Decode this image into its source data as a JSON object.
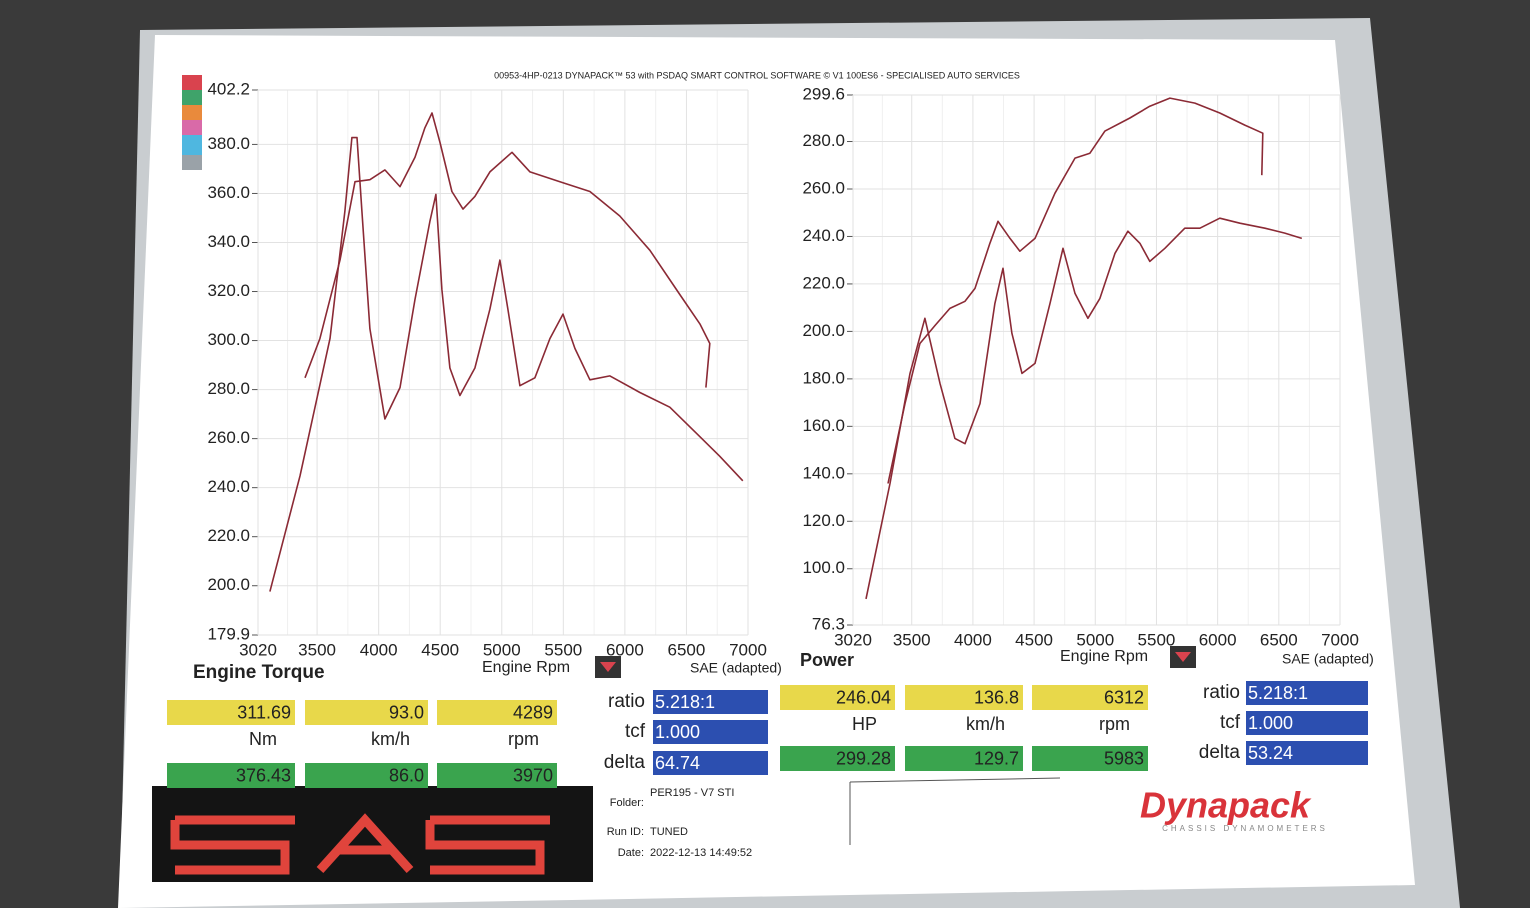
{
  "header": "00953-4HP-0213 DYNAPACK™ 53 with PSDAQ SMART CONTROL SOFTWARE © V1 100ES6 - SPECIALISED AUTO SERVICES",
  "chart_data": [
    {
      "type": "line",
      "title": "Engine Torque",
      "x_label": "Engine Rpm",
      "note": "SAE (adapted)",
      "xlim": [
        3020,
        7000
      ],
      "xticks": [
        3020,
        3500,
        4000,
        4500,
        5000,
        5500,
        6000,
        6500,
        7000
      ],
      "ylim": [
        179.9,
        402.2
      ],
      "yticks": [
        179.9,
        {
          "value": 200,
          "label": "200.0"
        },
        {
          "value": 220,
          "label": "220.0"
        },
        {
          "value": 240,
          "label": "240.0"
        },
        {
          "value": 260,
          "label": "260.0"
        },
        {
          "value": 280,
          "label": "280.0"
        },
        {
          "value": 300,
          "label": "300.0"
        },
        {
          "value": 320,
          "label": "320.0"
        },
        {
          "value": 340,
          "label": "340.0"
        },
        {
          "value": 360,
          "label": "360.0"
        },
        {
          "value": 380,
          "label": "380.0"
        },
        402.2
      ],
      "grid": true,
      "series": [
        {
          "color": "#8b2a35",
          "x": [
            3117,
            3361,
            3605,
            3726,
            3783,
            3824,
            3864,
            3929,
            4051,
            4173,
            4295,
            4417,
            4465,
            4514,
            4579,
            4660,
            4782,
            4904,
            4985,
            5050,
            5147,
            5269,
            5391,
            5497,
            5594,
            5716,
            5878,
            6122,
            6365,
            6609,
            6771,
            6958
          ],
          "values": [
            197.6,
            244.8,
            300.8,
            352.8,
            382.8,
            382.8,
            352.8,
            304.8,
            268.0,
            280.8,
            316.8,
            348.8,
            359.6,
            320.8,
            288.8,
            277.6,
            288.8,
            312.8,
            332.8,
            312.8,
            281.6,
            284.8,
            300.8,
            310.8,
            296.8,
            284.0,
            285.6,
            278.8,
            272.8,
            260.8,
            252.8,
            242.8
          ]
        },
        {
          "color": "#8b2a35",
          "x": [
            3402,
            3523,
            3686,
            3808,
            3929,
            4051,
            4173,
            4295,
            4376,
            4433,
            4498,
            4595,
            4685,
            4782,
            4904,
            5083,
            5229,
            5472,
            5716,
            5959,
            6203,
            6446,
            6609,
            6690,
            6658
          ],
          "values": [
            284.8,
            300.8,
            332.8,
            364.8,
            365.6,
            369.6,
            362.8,
            374.8,
            386.8,
            392.8,
            380.8,
            360.8,
            353.6,
            358.8,
            368.8,
            376.8,
            368.8,
            364.8,
            360.8,
            350.8,
            336.8,
            318.8,
            306.8,
            298.8,
            280.8
          ]
        }
      ]
    },
    {
      "type": "line",
      "title": "Power",
      "x_label": "Engine Rpm",
      "note": "SAE (adapted)",
      "xlim": [
        3020,
        7000
      ],
      "xticks": [
        3020,
        3500,
        4000,
        4500,
        5000,
        5500,
        6000,
        6500,
        7000
      ],
      "ylim": [
        76.3,
        299.6
      ],
      "yticks": [
        76.3,
        {
          "value": 100,
          "label": "100.0"
        },
        {
          "value": 120,
          "label": "120.0"
        },
        {
          "value": 140,
          "label": "140.0"
        },
        {
          "value": 160,
          "label": "160.0"
        },
        {
          "value": 180,
          "label": "180.0"
        },
        {
          "value": 200,
          "label": "200.0"
        },
        {
          "value": 220,
          "label": "220.0"
        },
        {
          "value": 240,
          "label": "240.0"
        },
        {
          "value": 260,
          "label": "260.0"
        },
        {
          "value": 280,
          "label": "280.0"
        },
        299.6
      ],
      "grid": true,
      "series": [
        {
          "color": "#8b2a35",
          "x": [
            3126,
            3322,
            3486,
            3608,
            3731,
            3853,
            3935,
            4058,
            4180,
            4246,
            4319,
            4401,
            4507,
            4630,
            4736,
            4834,
            4940,
            5038,
            5161,
            5267,
            5365,
            5446,
            5569,
            5732,
            5855,
            6018,
            6182,
            6386,
            6549,
            6688
          ],
          "values": [
            87.3,
            135.9,
            182.3,
            205.5,
            178.1,
            154.9,
            152.7,
            169.6,
            211.8,
            226.6,
            199.2,
            182.3,
            186.5,
            211.8,
            235.0,
            216.0,
            205.5,
            213.9,
            232.9,
            242.2,
            237.1,
            229.5,
            235.0,
            243.5,
            243.5,
            247.7,
            245.6,
            243.5,
            241.4,
            239.2
          ]
        },
        {
          "color": "#8b2a35",
          "x": [
            3306,
            3445,
            3567,
            3690,
            3812,
            3935,
            4017,
            4139,
            4205,
            4303,
            4384,
            4507,
            4670,
            4834,
            4956,
            5079,
            5283,
            5446,
            5610,
            5814,
            6018,
            6222,
            6369,
            6361
          ],
          "values": [
            135.9,
            169.6,
            194.9,
            202.5,
            209.7,
            212.7,
            218.1,
            237.1,
            246.4,
            239.2,
            233.8,
            239.2,
            258.2,
            273.0,
            275.1,
            284.4,
            289.9,
            294.9,
            298.3,
            296.2,
            292.0,
            286.9,
            283.5,
            265.8
          ]
        }
      ]
    }
  ],
  "readouts": [
    {
      "primary": [
        "311.69",
        "93.0",
        "4289"
      ],
      "units": [
        "Nm",
        "km/h",
        "rpm"
      ],
      "secondary": [
        "376.43",
        "86.0",
        "3970"
      ],
      "params": [
        {
          "label": "ratio",
          "value": "5.218:1"
        },
        {
          "label": "tcf",
          "value": "1.000"
        },
        {
          "label": "delta",
          "value": "64.74"
        }
      ]
    },
    {
      "primary": [
        "246.04",
        "136.8",
        "6312"
      ],
      "units": [
        "HP",
        "km/h",
        "rpm"
      ],
      "secondary": [
        "299.28",
        "129.7",
        "5983"
      ],
      "params": [
        {
          "label": "ratio",
          "value": "5.218:1"
        },
        {
          "label": "tcf",
          "value": "1.000"
        },
        {
          "label": "delta",
          "value": "53.24"
        }
      ]
    }
  ],
  "run_info": [
    {
      "label": "Folder:",
      "value": "PER195 - V7 STI"
    },
    {
      "label": "Run ID:",
      "value": "TUNED"
    },
    {
      "label": "Date:",
      "value": "2022-12-13 14:49:52"
    }
  ],
  "logo": {
    "name": "Dynapack",
    "tagline": "CHASSIS DYNAMOMETERS"
  }
}
